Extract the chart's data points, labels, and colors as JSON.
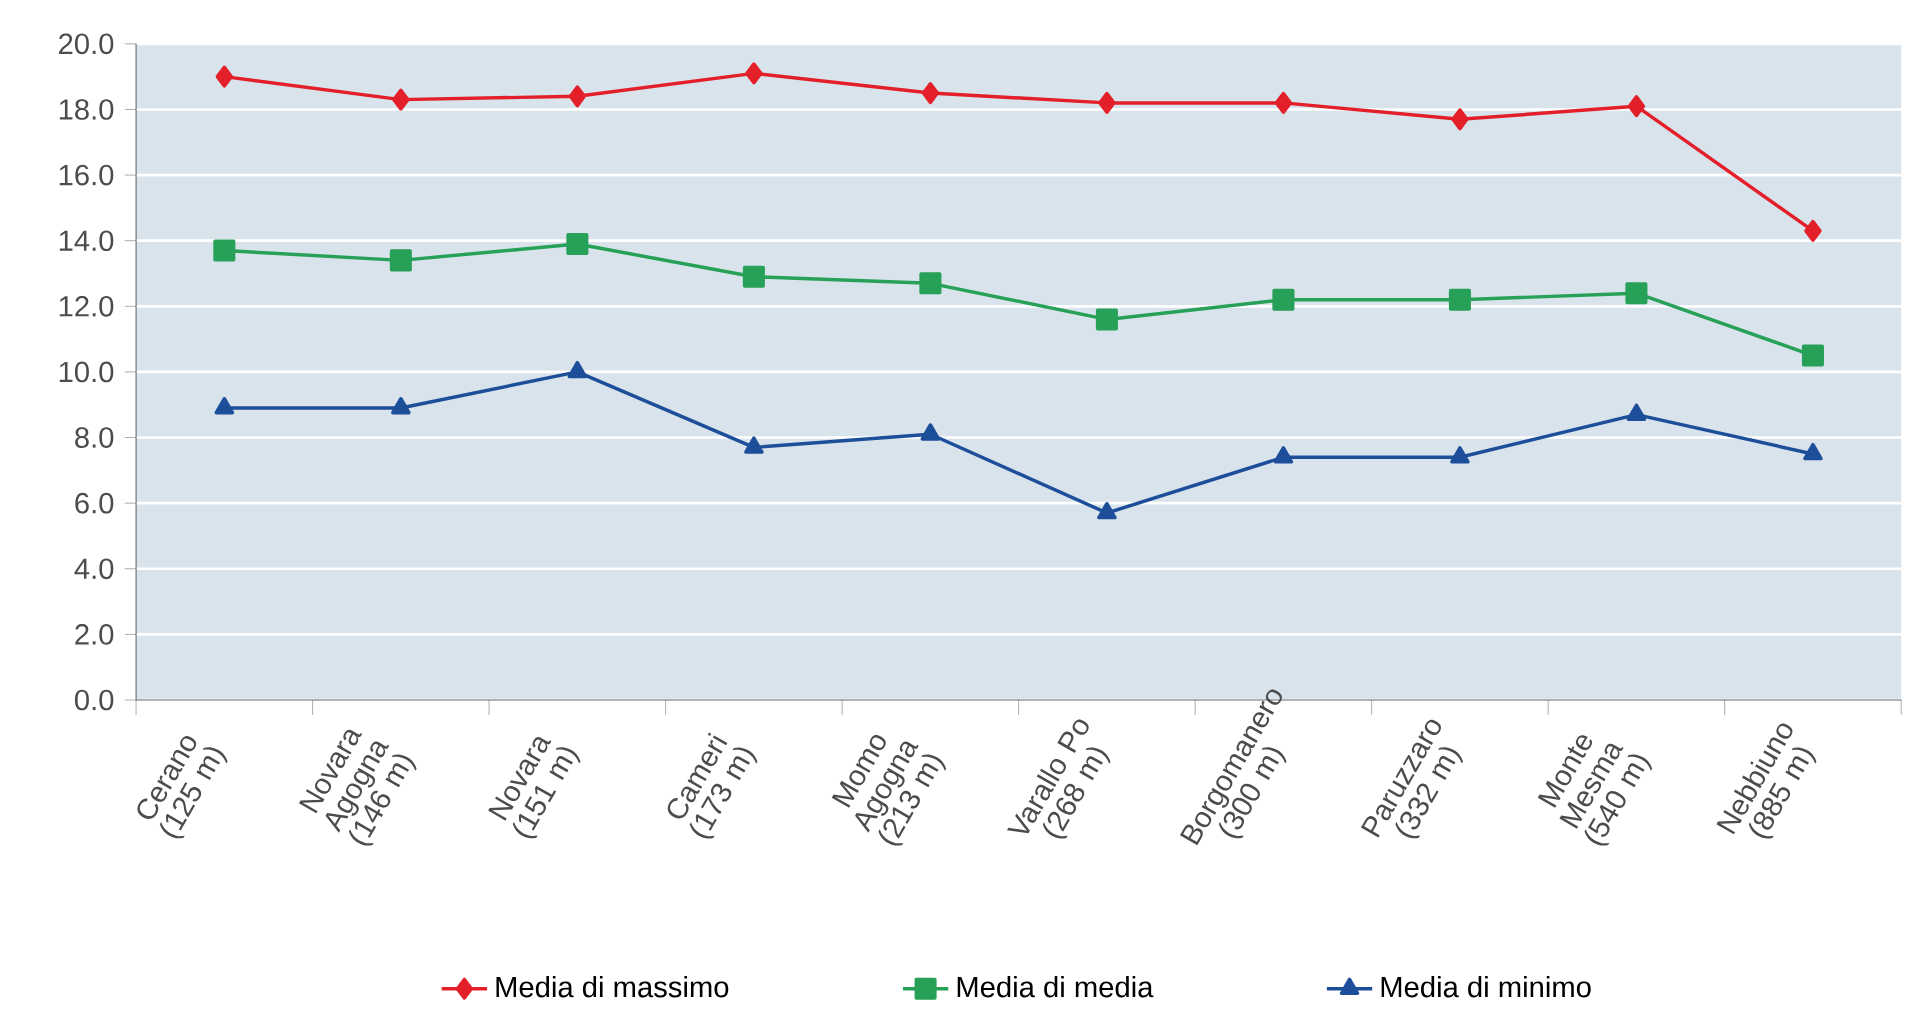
{
  "chart_data": {
    "type": "line",
    "categories": [
      "Cerano (125 m)",
      "Novara Agogna (146 m)",
      "Novara (151 m)",
      "Cameri (173 m)",
      "Momo Agogna (213 m)",
      "Varallo Po (268 m)",
      "Borgomanero (300 m)",
      "Paruzzaro (332 m)",
      "Monte Mesma (540 m)",
      "Nebbiuno (885 m)"
    ],
    "series": [
      {
        "name": "Media di massimo",
        "color": "#e3202a",
        "marker": "diamond",
        "values": [
          19.0,
          18.3,
          18.4,
          19.1,
          18.5,
          18.2,
          18.2,
          17.7,
          18.1,
          14.3
        ]
      },
      {
        "name": "Media di media",
        "color": "#27a058",
        "marker": "square",
        "values": [
          13.7,
          13.4,
          13.9,
          12.9,
          12.7,
          11.6,
          12.2,
          12.2,
          12.4,
          10.5
        ]
      },
      {
        "name": "Media di minimo",
        "color": "#1d4e9a",
        "marker": "triangle",
        "values": [
          8.9,
          8.9,
          10.0,
          7.7,
          8.1,
          5.7,
          7.4,
          7.4,
          8.7,
          7.5
        ]
      }
    ],
    "ylim": [
      0,
      20
    ],
    "yticks": [
      {
        "value": 0,
        "label": "0.0"
      },
      {
        "value": 2,
        "label": "2.0"
      },
      {
        "value": 4,
        "label": "4.0"
      },
      {
        "value": 6,
        "label": "6.0"
      },
      {
        "value": 8,
        "label": "8.0"
      },
      {
        "value": 10,
        "label": "10.0"
      },
      {
        "value": 12,
        "label": "12.0"
      },
      {
        "value": 14,
        "label": "14.0"
      },
      {
        "value": 16,
        "label": "16.0"
      },
      {
        "value": 18,
        "label": "18.0"
      },
      {
        "value": 20,
        "label": "20.0"
      }
    ],
    "grid": "y",
    "legend": "bottom",
    "line_style": "solid"
  }
}
